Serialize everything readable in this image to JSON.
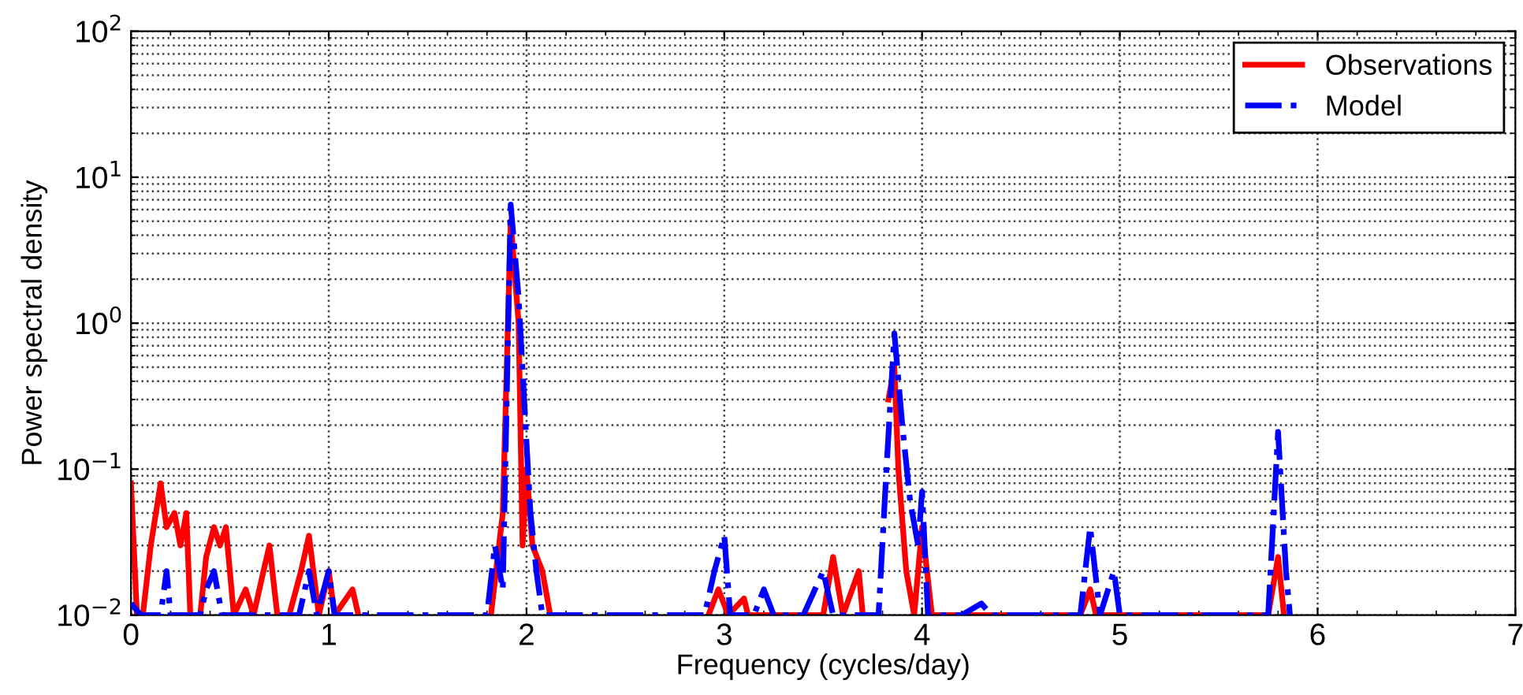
{
  "chart_data": {
    "type": "line",
    "xlabel": "Frequency (cycles/day)",
    "ylabel": "Power spectral density",
    "log": "y",
    "grid": true,
    "legend": "top right",
    "xlim": [
      0,
      7
    ],
    "xticks": [
      0,
      1,
      2,
      3,
      4,
      5,
      6,
      7
    ],
    "ylim": [
      0.01,
      100
    ],
    "yticks": [
      {
        "value": 0.01,
        "label": "10$^{−2}$"
      },
      {
        "value": 0.1,
        "label": "10$^{−1}$"
      },
      {
        "value": 1,
        "label": "10$^{0}$"
      },
      {
        "value": 10,
        "label": "10$^{1}$"
      },
      {
        "value": 100,
        "label": "10$^{2}$"
      }
    ],
    "series": [
      {
        "name": "Observations",
        "color": "#ff0000",
        "line_style": "solid",
        "x": [
          0,
          0.03,
          0.06,
          0.1,
          0.15,
          0.18,
          0.22,
          0.25,
          0.28,
          0.3,
          0.35,
          0.38,
          0.42,
          0.45,
          0.48,
          0.52,
          0.58,
          0.62,
          0.67,
          0.7,
          0.74,
          0.8,
          0.86,
          0.9,
          0.95,
          1.0,
          1.03,
          1.12,
          1.15,
          1.3,
          1.82,
          1.88,
          1.92,
          1.96,
          1.98,
          2.0,
          2.03,
          2.08,
          2.12,
          2.8,
          2.92,
          2.97,
          3.02,
          3.1,
          3.12,
          3.5,
          3.55,
          3.6,
          3.68,
          3.7,
          3.78,
          3.83,
          3.86,
          3.88,
          3.92,
          3.96,
          4.0,
          4.05,
          4.8,
          4.85,
          4.88,
          5.75,
          5.8,
          5.83
        ],
        "values": [
          0.08,
          0.01,
          0.01,
          0.03,
          0.08,
          0.04,
          0.05,
          0.03,
          0.05,
          0.01,
          0.01,
          0.025,
          0.04,
          0.03,
          0.04,
          0.01,
          0.015,
          0.01,
          0.02,
          0.03,
          0.01,
          0.01,
          0.02,
          0.035,
          0.01,
          0.02,
          0.01,
          0.015,
          0.01,
          null,
          0.01,
          0.05,
          5.0,
          1.0,
          0.03,
          0.1,
          0.03,
          0.02,
          0.01,
          null,
          0.01,
          0.015,
          0.01,
          0.013,
          0.01,
          0.01,
          0.025,
          0.01,
          0.02,
          0.01,
          null,
          0.3,
          0.5,
          0.1,
          0.02,
          0.01,
          0.04,
          0.01,
          0.01,
          0.015,
          0.01,
          0.01,
          0.025,
          0.01
        ]
      },
      {
        "name": "Model",
        "color": "#0000ff",
        "line_style": "dashdot",
        "x": [
          0,
          0.05,
          0.15,
          0.18,
          0.2,
          0.35,
          0.38,
          0.42,
          0.46,
          0.85,
          0.9,
          0.94,
          1.0,
          1.03,
          1.8,
          1.84,
          1.88,
          1.92,
          1.96,
          2.0,
          2.02,
          2.05,
          2.08,
          2.9,
          2.95,
          3.0,
          3.03,
          3.15,
          3.2,
          3.25,
          3.4,
          3.5,
          3.55,
          3.78,
          3.82,
          3.86,
          3.9,
          3.94,
          3.98,
          4.0,
          4.03,
          4.2,
          4.3,
          4.35,
          4.8,
          4.85,
          4.9,
          4.97,
          5.0,
          5.75,
          5.8,
          5.84,
          5.86
        ],
        "values": [
          0.012,
          0.01,
          0.01,
          0.02,
          0.01,
          0.01,
          0.015,
          0.02,
          0.01,
          0.01,
          0.02,
          0.01,
          0.02,
          0.01,
          0.01,
          0.03,
          0.015,
          6.5,
          1.5,
          0.15,
          0.05,
          0.02,
          0.01,
          0.01,
          0.02,
          0.035,
          0.01,
          0.01,
          0.015,
          0.01,
          0.01,
          0.02,
          0.01,
          0.01,
          0.1,
          0.85,
          0.2,
          0.06,
          0.03,
          0.07,
          0.01,
          0.01,
          0.012,
          0.01,
          0.01,
          0.04,
          0.01,
          0.02,
          0.01,
          0.01,
          0.18,
          0.02,
          0.01
        ]
      }
    ]
  }
}
